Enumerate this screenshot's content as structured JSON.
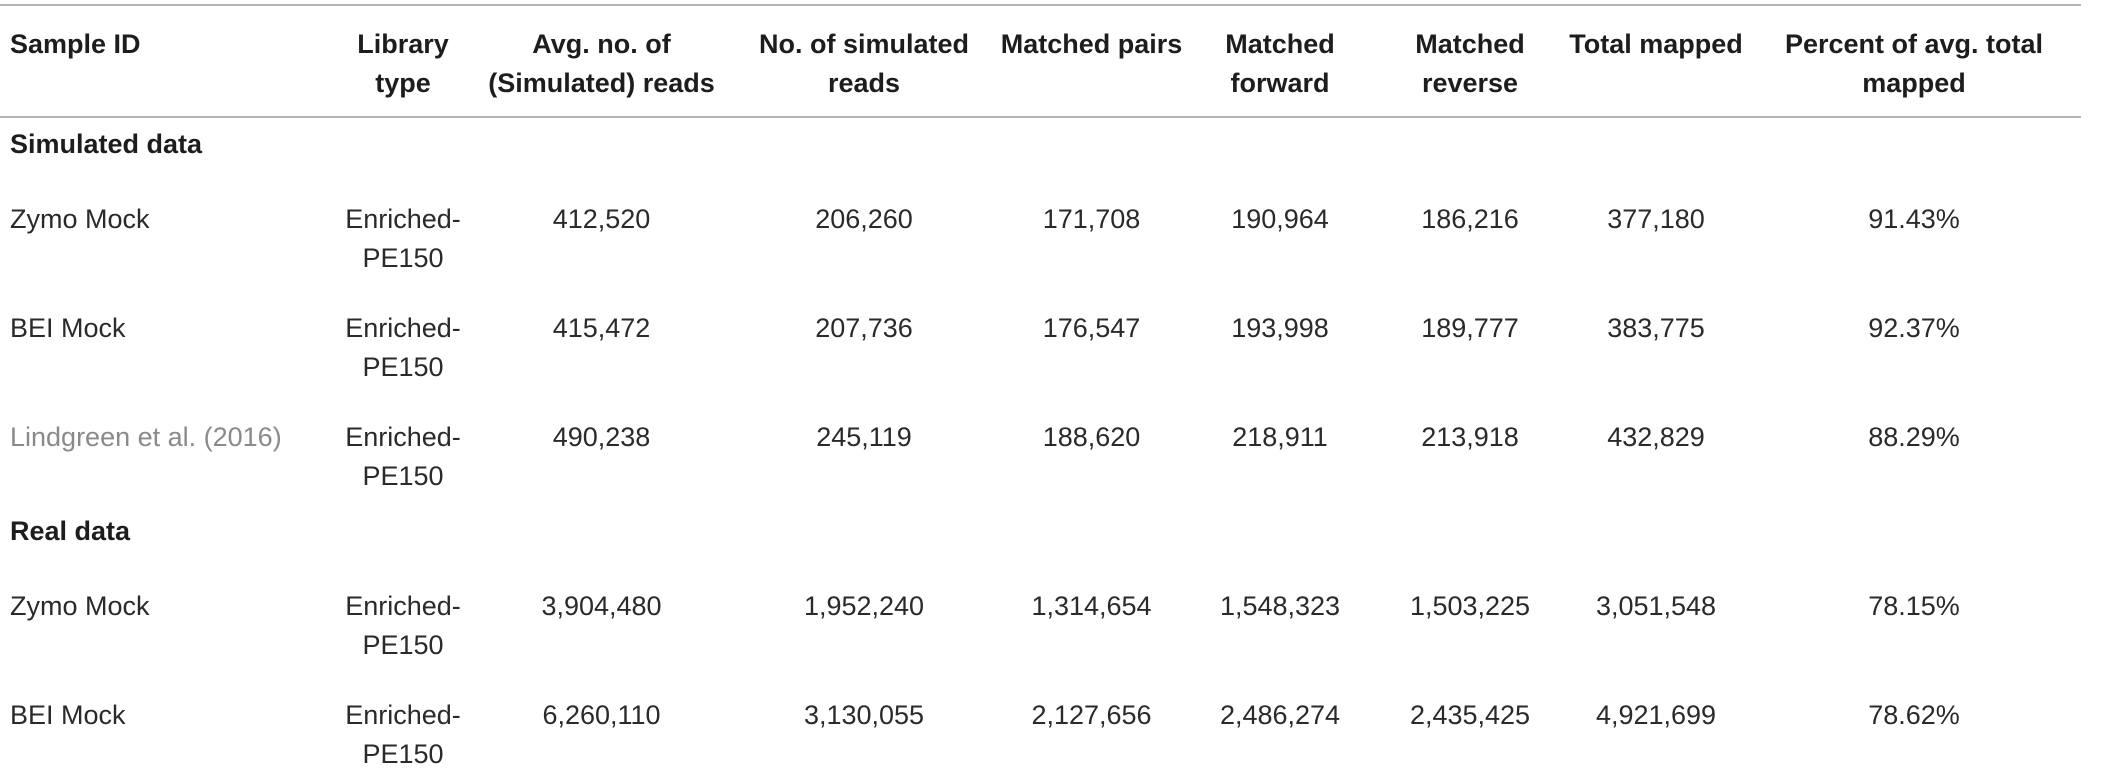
{
  "headers": [
    "Sample ID",
    "Library type",
    "Avg. no. of (Simulated) reads",
    "No. of simulated reads",
    "Matched pairs",
    "Matched forward",
    "Matched reverse",
    "Total mapped",
    "Percent of avg. total mapped"
  ],
  "sections": [
    {
      "title": "Simulated data",
      "rows": [
        [
          "Zymo Mock",
          "Enriched-PE150",
          "412,520",
          "206,260",
          "171,708",
          "190,964",
          "186,216",
          "377,180",
          "91.43%"
        ],
        [
          "BEI Mock",
          "Enriched-PE150",
          "415,472",
          "207,736",
          "176,547",
          "193,998",
          "189,777",
          "383,775",
          "92.37%"
        ],
        [
          "Lindgreen et al. (2016)",
          "Enriched-PE150",
          "490,238",
          "245,119",
          "188,620",
          "218,911",
          "213,918",
          "432,829",
          "88.29%"
        ]
      ]
    },
    {
      "title": "Real data",
      "rows": [
        [
          "Zymo Mock",
          "Enriched-PE150",
          "3,904,480",
          "1,952,240",
          "1,314,654",
          "1,548,323",
          "1,503,225",
          "3,051,548",
          "78.15%"
        ],
        [
          "BEI Mock",
          "Enriched-PE150",
          "6,260,110",
          "3,130,055",
          "2,127,656",
          "2,486,274",
          "2,435,425",
          "4,921,699",
          "78.62%"
        ]
      ]
    }
  ]
}
